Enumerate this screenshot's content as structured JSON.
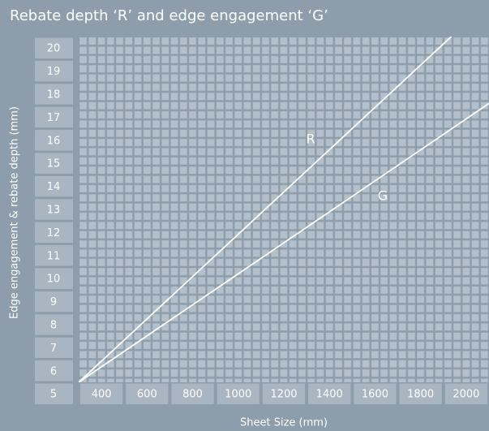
{
  "chart_data": {
    "type": "line",
    "title": "Rebate depth ‘R’ and edge engagement ‘G’",
    "x_label": "Sheet Size (mm)",
    "y_label": "Edge engagement & rebate depth (mm)",
    "xlim": [
      300,
      2100
    ],
    "xticks": [
      400,
      600,
      800,
      1000,
      1200,
      1400,
      1600,
      1800,
      2000
    ],
    "ylim": [
      4.5,
      20.5
    ],
    "yticks": [
      5,
      6,
      7,
      8,
      9,
      10,
      11,
      12,
      13,
      14,
      15,
      16,
      17,
      18,
      19,
      20
    ],
    "series": [
      {
        "name": "R",
        "color": "#ffffff",
        "x": [
          300,
          1935
        ],
        "values": [
          5.5,
          20.5
        ]
      },
      {
        "name": "G",
        "color": "#ffffff",
        "x": [
          300,
          2100
        ],
        "values": [
          5.5,
          17.6
        ]
      }
    ]
  }
}
